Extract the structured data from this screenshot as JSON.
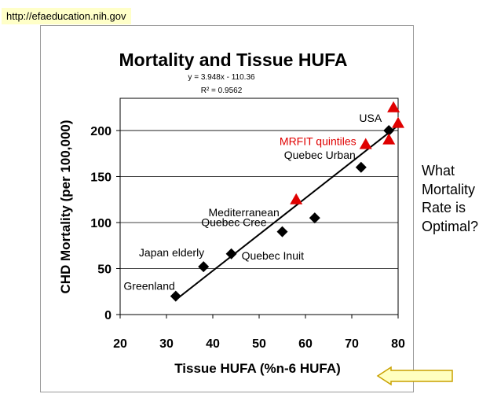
{
  "source_url": "http://efaeducation.nih.gov",
  "side_question": [
    "What",
    "Mortality",
    "Rate is",
    "Optimal?"
  ],
  "colors": {
    "data": "#000000",
    "mrfit": "#e00000",
    "arrow_fill": "#ffffc0",
    "arrow_stroke": "#c8a000",
    "url_bg": "#ffffc8"
  },
  "chart_data": {
    "type": "scatter",
    "title": "Mortality and Tissue HUFA",
    "equation": "y = 3.948x - 110.36",
    "r_squared": "R² = 0.9562",
    "xlabel": "Tissue HUFA (%n-6 HUFA)",
    "ylabel": "CHD Mortality (per 100,000)",
    "xlim": [
      20,
      80
    ],
    "ylim": [
      0,
      235
    ],
    "xticks": [
      20,
      30,
      40,
      50,
      60,
      70,
      80
    ],
    "yticks": [
      0,
      50,
      100,
      150,
      200
    ],
    "grid": "horizontal",
    "trendline": {
      "slope": 3.948,
      "intercept": -110.36,
      "x_range": [
        32,
        80
      ]
    },
    "series": [
      {
        "marker": "diamond",
        "color": "#000000",
        "points": [
          {
            "x": 32,
            "y": 20
          },
          {
            "x": 38,
            "y": 52
          },
          {
            "x": 44,
            "y": 66
          },
          {
            "x": 55,
            "y": 90
          },
          {
            "x": 62,
            "y": 105
          },
          {
            "x": 72,
            "y": 160
          },
          {
            "x": 78,
            "y": 200
          }
        ]
      },
      {
        "name": "MRFIT quintiles",
        "marker": "triangle",
        "color": "#e00000",
        "points": [
          {
            "x": 58,
            "y": 125
          },
          {
            "x": 73,
            "y": 185
          },
          {
            "x": 78,
            "y": 190
          },
          {
            "x": 79,
            "y": 225
          },
          {
            "x": 80,
            "y": 208
          }
        ]
      }
    ],
    "annotations": [
      {
        "text": "Greenland",
        "x": 32,
        "y": 20,
        "color": "#000000"
      },
      {
        "text": "Japan elderly",
        "x": 38,
        "y": 52,
        "color": "#000000"
      },
      {
        "text": "Quebec Inuit",
        "x": 44,
        "y": 66,
        "color": "#000000"
      },
      {
        "text": "Quebec Cree",
        "x": 55,
        "y": 90,
        "color": "#000000"
      },
      {
        "text": "Mediterranean",
        "x": 62,
        "y": 105,
        "color": "#000000"
      },
      {
        "text": "Quebec Urban",
        "x": 72,
        "y": 160,
        "color": "#000000"
      },
      {
        "text": "MRFIT quintiles",
        "x": 73,
        "y": 185,
        "color": "#e00000"
      },
      {
        "text": "USA",
        "x": 78,
        "y": 200,
        "color": "#000000"
      }
    ]
  }
}
